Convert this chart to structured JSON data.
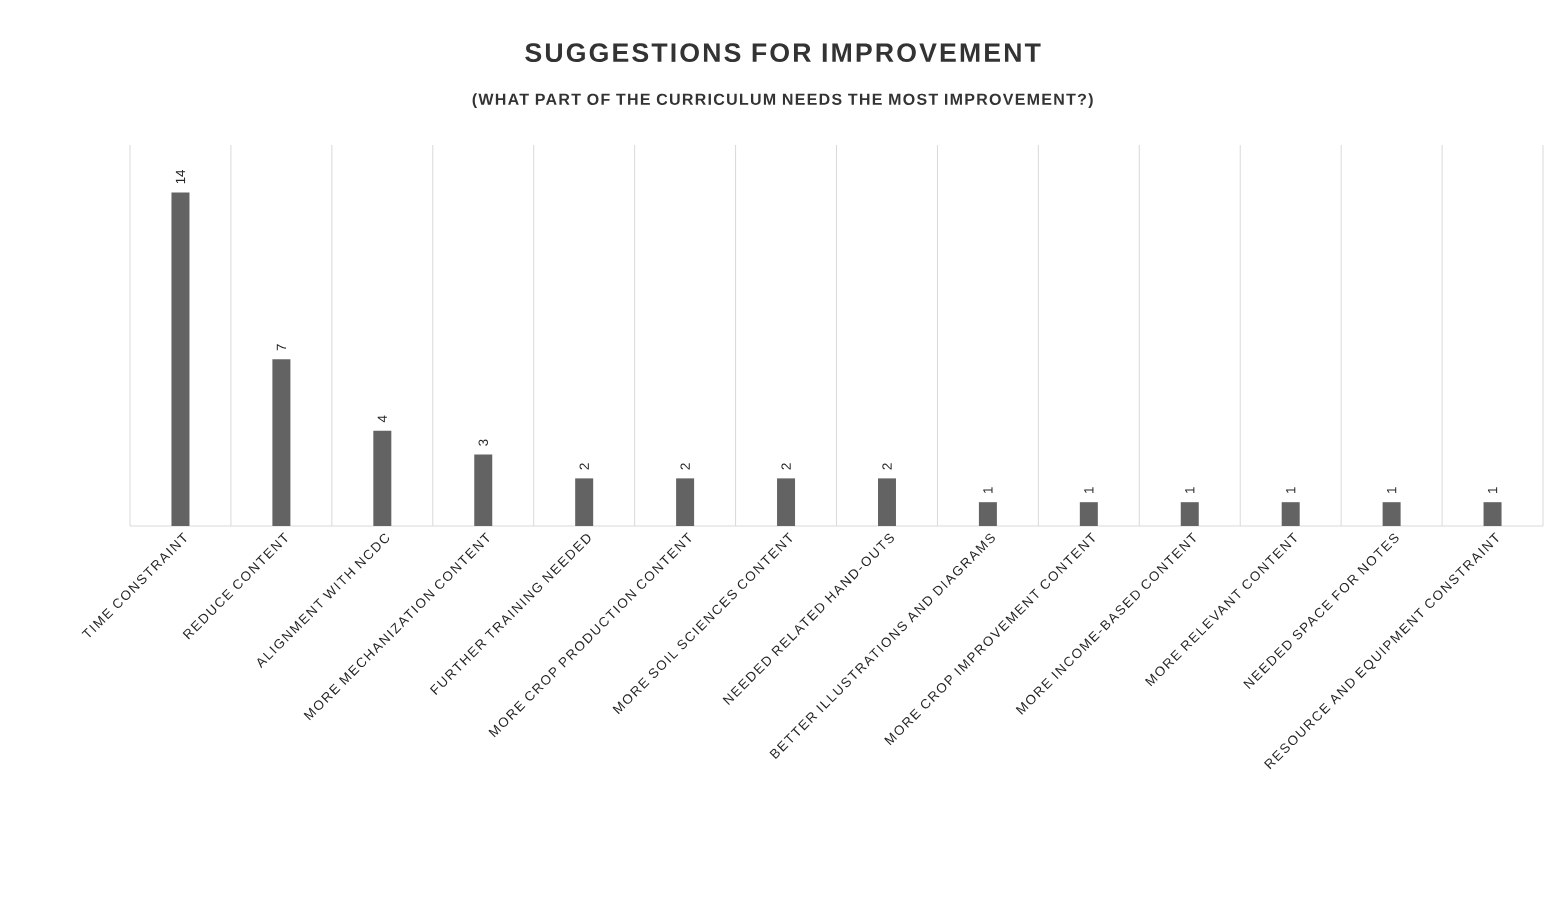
{
  "chart_data": {
    "type": "bar",
    "title": "SUGGESTIONS FOR IMPROVEMENT",
    "subtitle": "(WHAT PART OF THE CURRICULUM NEEDS THE MOST IMPROVEMENT?)",
    "categories": [
      "TIME CONSTRAINT",
      "REDUCE CONTENT",
      "ALIGNMENT WITH NCDC",
      "MORE MECHANIZATION  CONTENT",
      "FURTHER TRAINING NEEDED",
      "MORE CROP PRODUCTION CONTENT",
      "MORE SOIL SCIENCES CONTENT",
      "NEEDED RELATED HAND-OUTS",
      "BETTER ILLUSTRATIONS AND DIAGRAMS",
      "MORE CROP IMPROVEMENT CONTENT",
      "MORE INCOME-BASED CONTENT",
      "MORE RELEVANT CONTENT",
      "NEEDED SPACE FOR NOTES",
      "RESOURCE AND EQUIPMENT CONSTRAINT"
    ],
    "values": [
      14,
      7,
      4,
      3,
      2,
      2,
      2,
      2,
      1,
      1,
      1,
      1,
      1,
      1
    ],
    "color": "#636363",
    "ylim": [
      0,
      16
    ],
    "data_labels": true,
    "grid": "x"
  }
}
